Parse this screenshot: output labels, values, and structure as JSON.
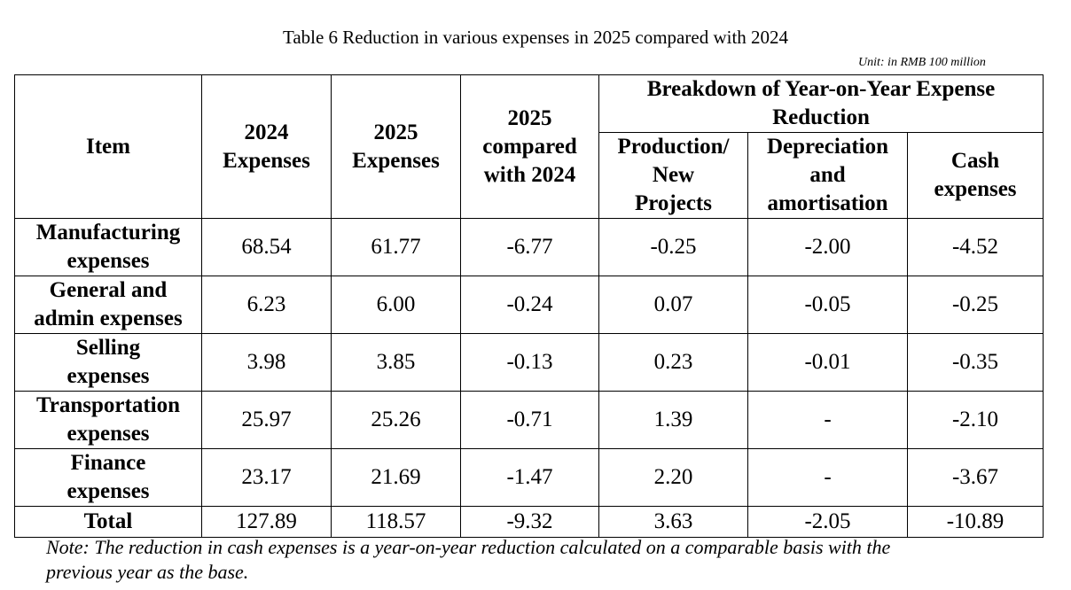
{
  "title": "Table 6 Reduction in various expenses in 2025 compared with 2024",
  "unit": "Unit: in RMB 100 million",
  "headers": {
    "item": "Item",
    "exp2024": [
      "2024",
      "Expenses"
    ],
    "exp2025": [
      "2025",
      "Expenses"
    ],
    "compared": [
      "2025",
      "compared",
      "with 2024"
    ],
    "breakdown": [
      "Breakdown of Year-on-Year Expense",
      "Reduction"
    ],
    "production": [
      "Production/",
      "New",
      "Projects"
    ],
    "depreciation": [
      "Depreciation",
      "and",
      "amortisation"
    ],
    "cash": [
      "Cash",
      "expenses"
    ]
  },
  "rows": [
    {
      "item": [
        "Manufacturing",
        "expenses"
      ],
      "values": [
        "68.54",
        "61.77",
        "-6.77",
        "-0.25",
        "-2.00",
        "-4.52"
      ]
    },
    {
      "item": [
        "General and",
        "admin expenses"
      ],
      "values": [
        "6.23",
        "6.00",
        "-0.24",
        "0.07",
        "-0.05",
        "-0.25"
      ]
    },
    {
      "item": [
        "Selling",
        "expenses"
      ],
      "values": [
        "3.98",
        "3.85",
        "-0.13",
        "0.23",
        "-0.01",
        "-0.35"
      ]
    },
    {
      "item": [
        "Transportation",
        "expenses"
      ],
      "values": [
        "25.97",
        "25.26",
        "-0.71",
        "1.39",
        "-",
        "-2.10"
      ]
    },
    {
      "item": [
        "Finance",
        "expenses"
      ],
      "values": [
        "23.17",
        "21.69",
        "-1.47",
        "2.20",
        "-",
        "-3.67"
      ]
    },
    {
      "item": [
        "Total"
      ],
      "values": [
        "127.89",
        "118.57",
        "-9.32",
        "3.63",
        "-2.05",
        "-10.89"
      ]
    }
  ],
  "note": [
    "Note: The reduction in cash expenses is a year-on-year reduction calculated on a comparable basis with the",
    "previous year as the base."
  ]
}
